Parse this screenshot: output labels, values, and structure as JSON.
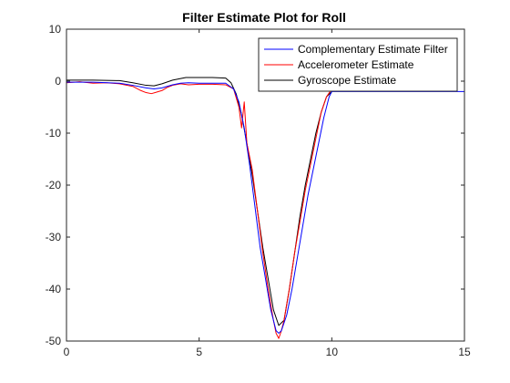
{
  "chart_data": {
    "type": "line",
    "title": "Filter Estimate Plot for Roll",
    "xlabel": "",
    "ylabel": "",
    "xlim": [
      0,
      15
    ],
    "ylim": [
      -50,
      10
    ],
    "xticks": [
      0,
      5,
      10,
      15
    ],
    "yticks": [
      10,
      0,
      -10,
      -20,
      -30,
      -40,
      -50
    ],
    "grid": false,
    "legend_position": "top-right",
    "series": [
      {
        "name": "Complementary Estimate Filter",
        "color": "#0000ff",
        "x": [
          0,
          1,
          2,
          2.5,
          3,
          3.3,
          3.6,
          4,
          4.3,
          4.6,
          5,
          5.5,
          6,
          6.3,
          6.5,
          6.7,
          6.9,
          7.1,
          7.3,
          7.5,
          7.7,
          7.9,
          8.0,
          8.1,
          8.3,
          8.5,
          8.7,
          8.9,
          9.1,
          9.3,
          9.5,
          9.7,
          9.9,
          10.0,
          11,
          12,
          13,
          14,
          15
        ],
        "y": [
          -0.2,
          -0.2,
          -0.4,
          -0.8,
          -1.3,
          -1.5,
          -1.3,
          -0.7,
          -0.4,
          -0.3,
          -0.4,
          -0.4,
          -0.4,
          -1.5,
          -4,
          -9,
          -16,
          -24,
          -32,
          -38,
          -44,
          -48,
          -48.5,
          -48,
          -45,
          -40,
          -34,
          -28,
          -22,
          -17,
          -12,
          -7,
          -3,
          -2,
          -2,
          -2,
          -2,
          -2,
          -2
        ]
      },
      {
        "name": "Accelerometer Estimate",
        "color": "#ff0000",
        "x": [
          0,
          0.5,
          1,
          1.5,
          2,
          2.5,
          2.8,
          3.0,
          3.2,
          3.4,
          3.6,
          3.8,
          4.0,
          4.3,
          4.6,
          5.0,
          5.5,
          6.0,
          6.3,
          6.5,
          6.6,
          6.7,
          6.8,
          7.0,
          7.2,
          7.4,
          7.6,
          7.8,
          7.9,
          8.0,
          8.1,
          8.2,
          8.4,
          8.6,
          8.8,
          9.0,
          9.2,
          9.4,
          9.6,
          9.8,
          10.0
        ],
        "y": [
          -0.3,
          -0.1,
          -0.4,
          -0.3,
          -0.5,
          -1.0,
          -1.8,
          -2.2,
          -2.4,
          -2.1,
          -1.8,
          -1.2,
          -0.8,
          -0.5,
          -0.7,
          -0.6,
          -0.6,
          -0.7,
          -1.5,
          -5,
          -9,
          -4,
          -12,
          -17,
          -25,
          -33,
          -40,
          -46,
          -48.5,
          -49.5,
          -48,
          -46,
          -40,
          -33,
          -27,
          -21,
          -16,
          -11,
          -6,
          -3,
          -1.5
        ]
      },
      {
        "name": "Gyroscope Estimate",
        "color": "#000000",
        "x": [
          0,
          1,
          2,
          2.5,
          3,
          3.3,
          3.6,
          4,
          4.5,
          5,
          5.5,
          6,
          6.2,
          6.4,
          6.6,
          6.8,
          7.0,
          7.2,
          7.4,
          7.6,
          7.8,
          8.0,
          8.2,
          8.4,
          8.6,
          8.8,
          9.0,
          9.2,
          9.4,
          9.6,
          9.8,
          10.0
        ],
        "y": [
          0.2,
          0.2,
          0.1,
          -0.3,
          -0.8,
          -0.9,
          -0.5,
          0.2,
          0.7,
          0.7,
          0.7,
          0.6,
          -0.3,
          -2.5,
          -6.5,
          -12,
          -18,
          -25,
          -32,
          -38,
          -44,
          -47,
          -46,
          -40,
          -33,
          -26,
          -20,
          -15,
          -10,
          -6,
          -3,
          -2
        ]
      }
    ]
  }
}
